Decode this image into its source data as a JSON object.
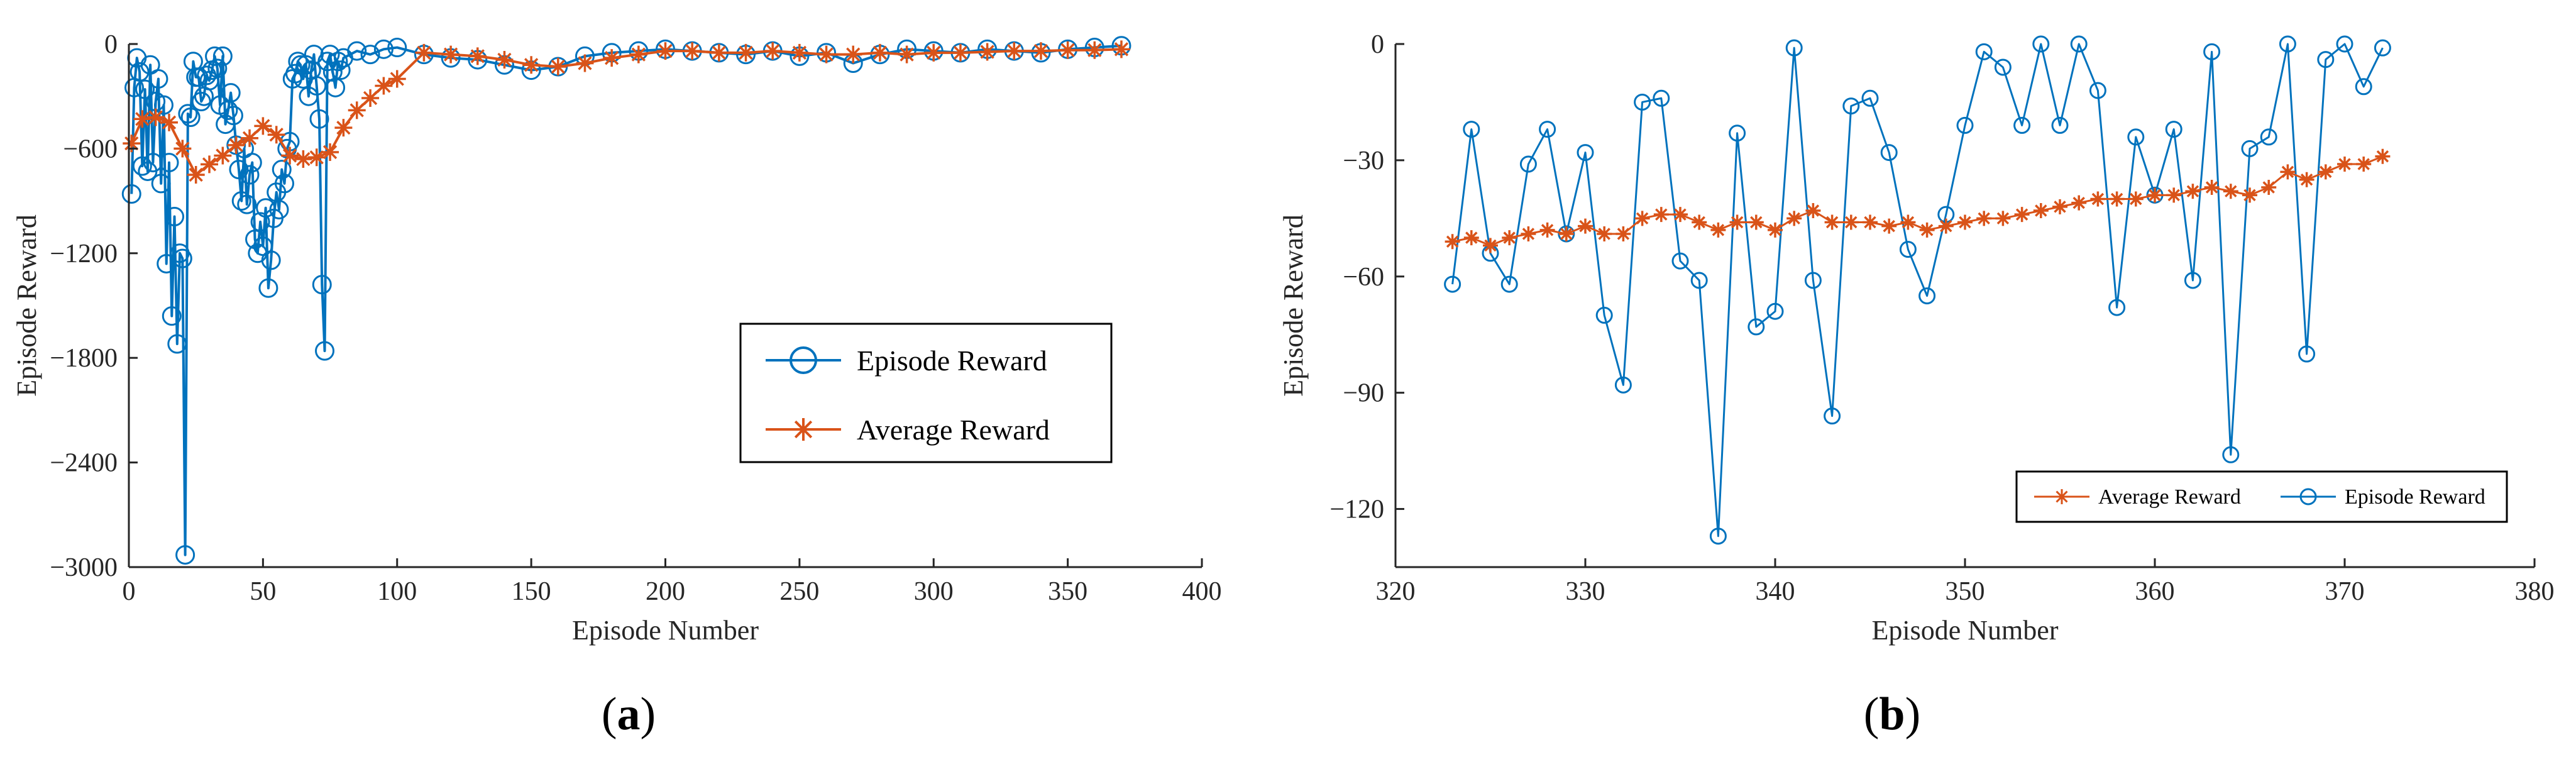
{
  "colors": {
    "episode": "#0072BD",
    "average": "#D95319",
    "axis": "#262626"
  },
  "panel_labels": {
    "a": "a",
    "b": "b"
  },
  "chart_data": [
    {
      "type": "line",
      "panel": "a",
      "xlabel": "Episode Number",
      "ylabel": "Episode Reward",
      "xlim": [
        0,
        400
      ],
      "ylim": [
        -3000,
        0
      ],
      "xticks": [
        0,
        50,
        100,
        150,
        200,
        250,
        300,
        350,
        400
      ],
      "yticks": [
        0,
        -600,
        -1200,
        -1800,
        -2400,
        -3000
      ],
      "ytick_labels": [
        "0",
        "-600",
        "-1200",
        "-1800",
        "-2400",
        "-3000"
      ],
      "legend": [
        "Episode Reward",
        "Average Reward"
      ],
      "legend_placement": "center-right",
      "series": [
        {
          "name": "Episode Reward",
          "marker": "circle",
          "x": [
            1,
            2,
            3,
            4,
            5,
            6,
            7,
            8,
            9,
            10,
            11,
            12,
            13,
            14,
            15,
            16,
            17,
            18,
            19,
            20,
            21,
            22,
            23,
            24,
            25,
            26,
            27,
            28,
            29,
            30,
            31,
            32,
            33,
            34,
            35,
            36,
            37,
            38,
            39,
            40,
            41,
            42,
            43,
            44,
            45,
            46,
            47,
            48,
            49,
            50,
            51,
            52,
            53,
            54,
            55,
            56,
            57,
            58,
            59,
            60,
            61,
            62,
            63,
            64,
            65,
            66,
            67,
            68,
            69,
            70,
            71,
            72,
            73,
            74,
            75,
            76,
            77,
            78,
            79,
            80,
            85,
            90,
            95,
            100,
            110,
            120,
            130,
            140,
            150,
            160,
            170,
            180,
            190,
            200,
            210,
            220,
            230,
            240,
            250,
            260,
            270,
            280,
            290,
            300,
            310,
            320,
            330,
            340,
            350,
            360,
            370
          ],
          "values": [
            -860,
            -250,
            -80,
            -160,
            -700,
            -260,
            -730,
            -120,
            -680,
            -330,
            -200,
            -800,
            -350,
            -1260,
            -680,
            -1560,
            -990,
            -1720,
            -1200,
            -1230,
            -2930,
            -400,
            -420,
            -100,
            -190,
            -190,
            -330,
            -300,
            -180,
            -210,
            -150,
            -70,
            -140,
            -350,
            -70,
            -460,
            -380,
            -280,
            -410,
            -580,
            -720,
            -900,
            -600,
            -920,
            -750,
            -680,
            -1120,
            -1200,
            -1020,
            -1160,
            -940,
            -1400,
            -1240,
            -1000,
            -850,
            -950,
            -720,
            -800,
            -600,
            -560,
            -200,
            -170,
            -100,
            -120,
            -200,
            -120,
            -300,
            -150,
            -60,
            -240,
            -430,
            -1380,
            -1760,
            -100,
            -60,
            -160,
            -250,
            -100,
            -150,
            -80,
            -40,
            -60,
            -30,
            -20,
            -60,
            -80,
            -90,
            -120,
            -150,
            -130,
            -70,
            -50,
            -40,
            -30,
            -40,
            -50,
            -60,
            -40,
            -70,
            -50,
            -110,
            -60,
            -30,
            -40,
            -50,
            -30,
            -40,
            -50,
            -30,
            -20,
            -10
          ]
        },
        {
          "name": "Average Reward",
          "marker": "star",
          "x": [
            1,
            5,
            10,
            15,
            20,
            25,
            30,
            35,
            40,
            45,
            50,
            55,
            60,
            65,
            70,
            75,
            80,
            85,
            90,
            95,
            100,
            110,
            120,
            130,
            140,
            150,
            160,
            170,
            180,
            190,
            200,
            210,
            220,
            230,
            240,
            250,
            260,
            270,
            280,
            290,
            300,
            310,
            320,
            330,
            340,
            350,
            360,
            370
          ],
          "values": [
            -570,
            -430,
            -420,
            -450,
            -600,
            -750,
            -690,
            -640,
            -580,
            -540,
            -470,
            -520,
            -640,
            -660,
            -650,
            -620,
            -480,
            -380,
            -310,
            -240,
            -200,
            -50,
            -60,
            -70,
            -90,
            -120,
            -130,
            -110,
            -80,
            -60,
            -40,
            -40,
            -50,
            -50,
            -40,
            -50,
            -60,
            -60,
            -50,
            -60,
            -50,
            -50,
            -45,
            -40,
            -40,
            -35,
            -35,
            -30
          ]
        }
      ]
    },
    {
      "type": "line",
      "panel": "b",
      "xlabel": "Episode Number",
      "ylabel": "Episode Reward",
      "xlim": [
        320,
        380
      ],
      "ylim": [
        -135,
        0
      ],
      "xticks": [
        320,
        330,
        340,
        350,
        360,
        370,
        380
      ],
      "yticks": [
        0,
        -30,
        -60,
        -90,
        -120
      ],
      "ytick_labels": [
        "0",
        "-30",
        "-60",
        "-90",
        "-120"
      ],
      "legend": [
        "Average Reward",
        "Episode Reward"
      ],
      "legend_placement": "bottom-right",
      "series": [
        {
          "name": "Episode Reward",
          "marker": "circle",
          "x": [
            323,
            324,
            325,
            326,
            327,
            328,
            329,
            330,
            331,
            332,
            333,
            334,
            335,
            336,
            337,
            338,
            339,
            340,
            341,
            342,
            343,
            344,
            345,
            346,
            347,
            348,
            349,
            350,
            351,
            352,
            353,
            354,
            355,
            356,
            357,
            358,
            359,
            360,
            361,
            362,
            363,
            364,
            365,
            366,
            367,
            368,
            369,
            370,
            371,
            372
          ],
          "values": [
            -62,
            -22,
            -54,
            -62,
            -31,
            -22,
            -49,
            -28,
            -70,
            -88,
            -15,
            -14,
            -56,
            -61,
            -127,
            -23,
            -73,
            -69,
            -1,
            -61,
            -96,
            -16,
            -14,
            -28,
            -53,
            -65,
            -44,
            -21,
            -2,
            -6,
            -21,
            0,
            -21,
            0,
            -12,
            -68,
            -24,
            -39,
            -22,
            -61,
            -2,
            -106,
            -27,
            -24,
            0,
            -80,
            -4,
            0,
            -11,
            -1
          ]
        },
        {
          "name": "Average Reward",
          "marker": "star",
          "x": [
            323,
            324,
            325,
            326,
            327,
            328,
            329,
            330,
            331,
            332,
            333,
            334,
            335,
            336,
            337,
            338,
            339,
            340,
            341,
            342,
            343,
            344,
            345,
            346,
            347,
            348,
            349,
            350,
            351,
            352,
            353,
            354,
            355,
            356,
            357,
            358,
            359,
            360,
            361,
            362,
            363,
            364,
            365,
            366,
            367,
            368,
            369,
            370,
            371,
            372
          ],
          "values": [
            -51,
            -50,
            -52,
            -50,
            -49,
            -48,
            -49,
            -47,
            -49,
            -49,
            -45,
            -44,
            -44,
            -46,
            -48,
            -46,
            -46,
            -48,
            -45,
            -43,
            -46,
            -46,
            -46,
            -47,
            -46,
            -48,
            -47,
            -46,
            -45,
            -45,
            -44,
            -43,
            -42,
            -41,
            -40,
            -40,
            -40,
            -39,
            -39,
            -38,
            -37,
            -38,
            -39,
            -37,
            -33,
            -35,
            -33,
            -31,
            -31,
            -29
          ]
        }
      ]
    }
  ]
}
